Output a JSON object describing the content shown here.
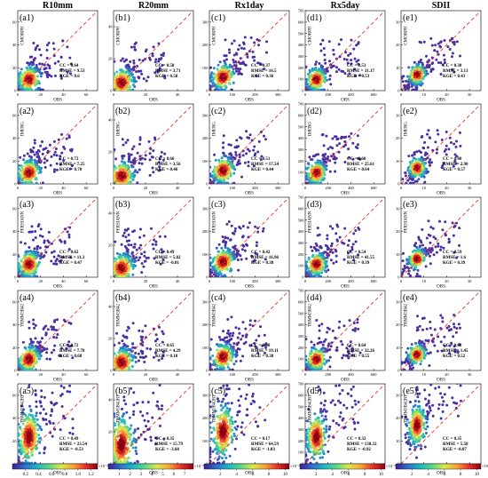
{
  "chart_data": {
    "type": "scatter",
    "xlabel": "OBS",
    "columns": [
      {
        "title": "R10mm",
        "xticks": [
          "0",
          "20",
          "40",
          "60"
        ],
        "yticks": [
          "0",
          "20",
          "40",
          "60"
        ],
        "range": [
          0,
          70
        ]
      },
      {
        "title": "R20mm",
        "xticks": [
          "0",
          "20",
          "40"
        ],
        "yticks": [
          "0",
          "20",
          "40"
        ],
        "range": [
          0,
          50
        ]
      },
      {
        "title": "Rx1day",
        "xticks": [
          "0",
          "100",
          "200",
          "300"
        ],
        "yticks": [
          "0",
          "100",
          "200",
          "300"
        ],
        "range": [
          0,
          350
        ]
      },
      {
        "title": "Rx5day",
        "xticks": [
          "0",
          "200",
          "400",
          "600"
        ],
        "yticks": [
          "0",
          "100",
          "200",
          "300",
          "400",
          "500",
          "600",
          "700"
        ],
        "range": [
          0,
          700
        ]
      },
      {
        "title": "SDII",
        "xticks": [
          "0",
          "10",
          "20",
          "30"
        ],
        "yticks": [
          "0",
          "10",
          "20",
          "30"
        ],
        "range": [
          0,
          35
        ]
      }
    ],
    "rows": [
      {
        "ylabel": "CMORPH"
      },
      {
        "ylabel": "IMERG"
      },
      {
        "ylabel": "PERSIANN"
      },
      {
        "ylabel": "TRMM3B42"
      },
      {
        "ylabel": "TRMM3B42RT"
      }
    ],
    "panels": [
      [
        {
          "label": "(a1)",
          "cc": "0.64",
          "rmse": "9.53",
          "kge": "0.6"
        },
        {
          "label": "(b1)",
          "cc": "0.58",
          "rmse": "3.71",
          "kge": "0.58"
        },
        {
          "label": "(c1)",
          "cc": "0.37",
          "rmse": "16.5",
          "kge": "0.36"
        },
        {
          "label": "(d1)",
          "cc": "0.53",
          "rmse": "31.17",
          "kge": "0.53"
        },
        {
          "label": "(e1)",
          "cc": "0.30",
          "rmse": "3.13",
          "kge": "0.43"
        }
      ],
      [
        {
          "label": "(a2)",
          "cc": "0.72",
          "rmse": "7.25",
          "kge": "0.70"
        },
        {
          "label": "(b2)",
          "cc": "0.66",
          "rmse": "3.56",
          "kge": "0.46"
        },
        {
          "label": "(c2)",
          "cc": "0.51",
          "rmse": "17.54",
          "kge": "0.44"
        },
        {
          "label": "(d2)",
          "cc": "0.68",
          "rmse": "25.61",
          "kge": "0.64"
        },
        {
          "label": "(e2)",
          "cc": "0.40",
          "rmse": "2.90",
          "kge": "0.57"
        }
      ],
      [
        {
          "label": "(a3)",
          "cc": "0.62",
          "rmse": "11.3",
          "kge": "0.47"
        },
        {
          "label": "(b3)",
          "cc": "0.49",
          "rmse": "5.02",
          "kge": "-0.01"
        },
        {
          "label": "(c3)",
          "cc": "0.42",
          "rmse": "16.96",
          "kge": "0.38"
        },
        {
          "label": "(d3)",
          "cc": "0.54",
          "rmse": "41.55",
          "kge": "0.39"
        },
        {
          "label": "(e3)",
          "cc": "0.59",
          "rmse": "1.6",
          "kge": "0.39"
        }
      ],
      [
        {
          "label": "(a4)",
          "cc": "0.72",
          "rmse": "7.78",
          "kge": "0.68"
        },
        {
          "label": "(b4)",
          "cc": "0.65",
          "rmse": "4.29",
          "kge": "0.18"
        },
        {
          "label": "(c4)",
          "cc": "0.48",
          "rmse": "19.11",
          "kge": "0.38"
        },
        {
          "label": "(d4)",
          "cc": "0.64",
          "rmse": "32.26",
          "kge": "0.55"
        },
        {
          "label": "(e4)",
          "cc": "0.60",
          "rmse": "1.45",
          "kge": "0.52"
        }
      ],
      [
        {
          "label": "(a5)",
          "cc": "0.49",
          "rmse": "23.54",
          "kge": "-0.53"
        },
        {
          "label": "(b5)",
          "cc": "0.35",
          "rmse": "15.79",
          "kge": "-3.68"
        },
        {
          "label": "(c5)",
          "cc": "0.17",
          "rmse": "64.59",
          "kge": "-1.03"
        },
        {
          "label": "(d5)",
          "cc": "0.32",
          "rmse": "130.32",
          "kge": "-0.92"
        },
        {
          "label": "(e5)",
          "cc": "0.35",
          "rmse": "5.58",
          "kge": "-0.07"
        }
      ]
    ],
    "colorbars": [
      {
        "ticks": [
          "0.2",
          "0.4",
          "0.6",
          "0.8",
          "1.0",
          "1.2"
        ],
        "exponent": "×10⁻³",
        "max": 1.3
      },
      {
        "ticks": [
          "1",
          "2",
          "3",
          "4",
          "5",
          "6",
          "7"
        ],
        "exponent": "×10⁻³",
        "max": 7.8
      },
      {
        "ticks": [
          "2",
          "4",
          "6",
          "8",
          "10"
        ],
        "exponent": "×10⁻³",
        "max": 10.5
      },
      {
        "ticks": [
          "2",
          "4",
          "6",
          "8",
          "10"
        ],
        "exponent": "×10⁻³",
        "max": 10.5
      },
      {
        "ticks": [
          "2",
          "4",
          "6",
          "8",
          "10"
        ],
        "exponent": "×10⁻³",
        "max": 10.5
      }
    ],
    "stat_labels": {
      "cc": "CC = ",
      "rmse": "RMSE = ",
      "kge": "KGE = "
    },
    "reference_line": "1:1 dashed red",
    "colors": {
      "reference_line": "#e8322a",
      "sparse_points": "#4b2fa0"
    },
    "colormap": [
      "#3b1f8f",
      "#2f6fc9",
      "#1fb5c2",
      "#5bd68a",
      "#d9e84a",
      "#f7a53a",
      "#e8322a",
      "#8a0010"
    ]
  }
}
